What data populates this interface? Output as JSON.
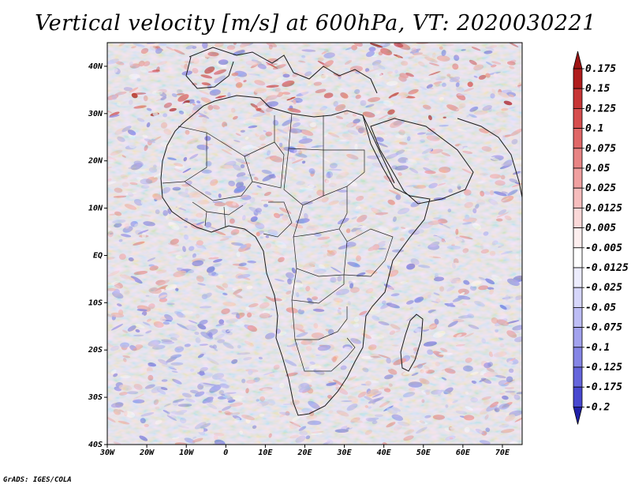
{
  "title": "Vertical velocity [m/s] at 600hPa, VT: 2020030221",
  "footer": "GrADS: IGES/COLA",
  "map": {
    "lon_range": [
      -30,
      75
    ],
    "lat_range": [
      -40,
      45
    ],
    "lat_ticks": [
      {
        "label": "40N",
        "value": 40
      },
      {
        "label": "30N",
        "value": 30
      },
      {
        "label": "20N",
        "value": 20
      },
      {
        "label": "10N",
        "value": 10
      },
      {
        "label": "EQ",
        "value": 0
      },
      {
        "label": "10S",
        "value": -10
      },
      {
        "label": "20S",
        "value": -20
      },
      {
        "label": "30S",
        "value": -30
      },
      {
        "label": "40S",
        "value": -40
      }
    ],
    "lon_ticks": [
      {
        "label": "30W",
        "value": -30
      },
      {
        "label": "20W",
        "value": -20
      },
      {
        "label": "10W",
        "value": -10
      },
      {
        "label": "0",
        "value": 0
      },
      {
        "label": "10E",
        "value": 10
      },
      {
        "label": "20E",
        "value": 20
      },
      {
        "label": "30E",
        "value": 30
      },
      {
        "label": "40E",
        "value": 40
      },
      {
        "label": "50E",
        "value": 50
      },
      {
        "label": "60E",
        "value": 60
      },
      {
        "label": "70E",
        "value": 70
      }
    ]
  },
  "colorbar": {
    "levels": [
      {
        "label": "0.175",
        "color": "#b01c1c"
      },
      {
        "label": "0.15",
        "color": "#c73535"
      },
      {
        "label": "0.125",
        "color": "#d64d4d"
      },
      {
        "label": "0.1",
        "color": "#e06767"
      },
      {
        "label": "0.075",
        "color": "#e88484"
      },
      {
        "label": "0.05",
        "color": "#f0a0a0"
      },
      {
        "label": "0.025",
        "color": "#f6bdbd"
      },
      {
        "label": "0.0125",
        "color": "#fad8d8"
      },
      {
        "label": "0.005",
        "color": "#fdeeee"
      },
      {
        "label": "-0.005",
        "color": "#ffffff"
      },
      {
        "label": "-0.0125",
        "color": "#ececfd"
      },
      {
        "label": "-0.025",
        "color": "#d6d6fa"
      },
      {
        "label": "-0.05",
        "color": "#bdbdf5"
      },
      {
        "label": "-0.075",
        "color": "#a2a2ee"
      },
      {
        "label": "-0.1",
        "color": "#8585e6"
      },
      {
        "label": "-0.125",
        "color": "#6565dc"
      },
      {
        "label": "-0.175",
        "color": "#4848d0"
      },
      {
        "label": "-0.2",
        "color": "#2e2ebf"
      }
    ],
    "top_color": "#9e1414",
    "bottom_color": "#2020a8"
  }
}
